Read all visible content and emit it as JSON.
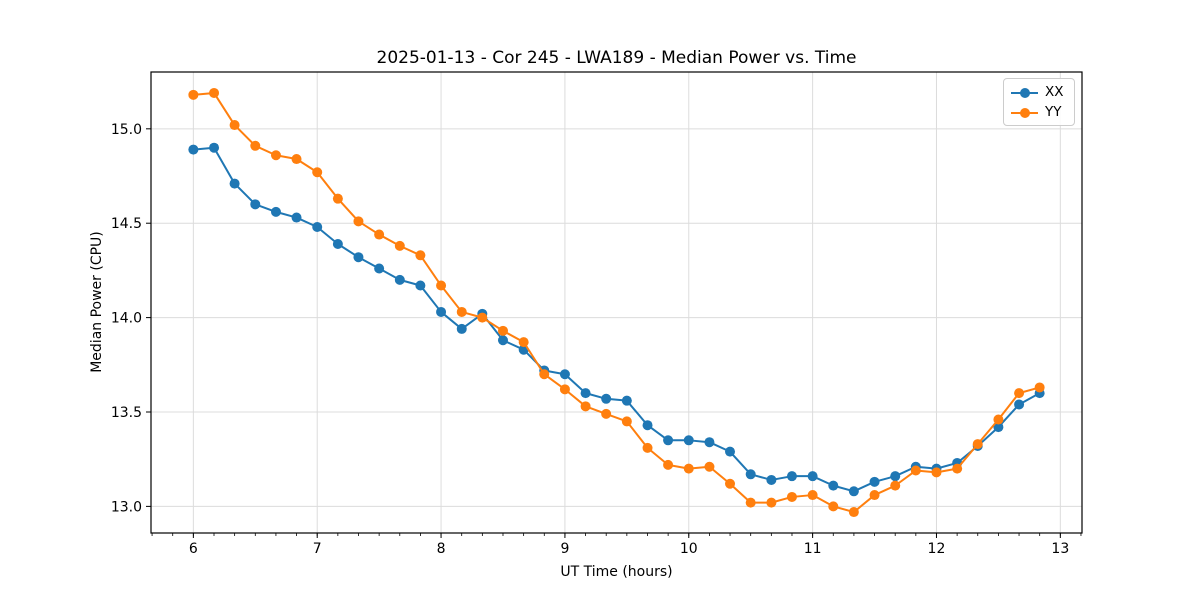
{
  "figure": {
    "title": "2025-01-13 - Cor 245 - LWA189 - Median Power vs. Time",
    "xlabel": "UT Time (hours)",
    "ylabel": "Median Power (CPU)"
  },
  "chart_data": {
    "type": "line",
    "title": "2025-01-13 - Cor 245 - LWA189 - Median Power vs. Time",
    "xlabel": "UT Time (hours)",
    "ylabel": "Median Power (CPU)",
    "xlim": [
      5.658,
      13.175
    ],
    "ylim": [
      12.859,
      15.301
    ],
    "x_ticks": [
      6,
      7,
      8,
      9,
      10,
      11,
      12,
      13
    ],
    "y_ticks": [
      13.0,
      13.5,
      14.0,
      14.5,
      15.0
    ],
    "x_minor_step_hours": 0.166667,
    "grid": true,
    "legend_position": "upper right",
    "sample_interval_minutes": 10,
    "x": [
      6.0,
      6.167,
      6.333,
      6.5,
      6.667,
      6.833,
      7.0,
      7.167,
      7.333,
      7.5,
      7.667,
      7.833,
      8.0,
      8.167,
      8.333,
      8.5,
      8.667,
      8.833,
      9.0,
      9.167,
      9.333,
      9.5,
      9.667,
      9.833,
      10.0,
      10.167,
      10.333,
      10.5,
      10.667,
      10.833,
      11.0,
      11.167,
      11.333,
      11.5,
      11.667,
      11.833,
      12.0,
      12.167,
      12.333,
      12.5,
      12.667,
      12.833
    ],
    "series": [
      {
        "name": "XX",
        "color": "#1f77b4",
        "values": [
          14.89,
          14.9,
          14.71,
          14.6,
          14.56,
          14.53,
          14.48,
          14.39,
          14.32,
          14.26,
          14.2,
          14.17,
          14.03,
          13.94,
          14.02,
          13.88,
          13.83,
          13.72,
          13.7,
          13.6,
          13.57,
          13.56,
          13.43,
          13.35,
          13.35,
          13.34,
          13.29,
          13.17,
          13.14,
          13.16,
          13.16,
          13.11,
          13.08,
          13.13,
          13.16,
          13.21,
          13.2,
          13.23,
          13.32,
          13.42,
          13.54,
          13.6
        ]
      },
      {
        "name": "YY",
        "color": "#ff7f0e",
        "values": [
          15.18,
          15.19,
          15.02,
          14.91,
          14.86,
          14.84,
          14.77,
          14.63,
          14.51,
          14.44,
          14.38,
          14.33,
          14.17,
          14.03,
          14.0,
          13.93,
          13.87,
          13.7,
          13.62,
          13.53,
          13.49,
          13.45,
          13.31,
          13.22,
          13.2,
          13.21,
          13.12,
          13.02,
          13.02,
          13.05,
          13.06,
          13.0,
          12.97,
          13.06,
          13.11,
          13.19,
          13.18,
          13.2,
          13.33,
          13.46,
          13.6,
          13.63
        ]
      }
    ],
    "colors": {
      "series_xx": "#1f77b4",
      "series_yy": "#ff7f0e",
      "grid": "#dcdcdc",
      "spine": "#000000"
    }
  }
}
